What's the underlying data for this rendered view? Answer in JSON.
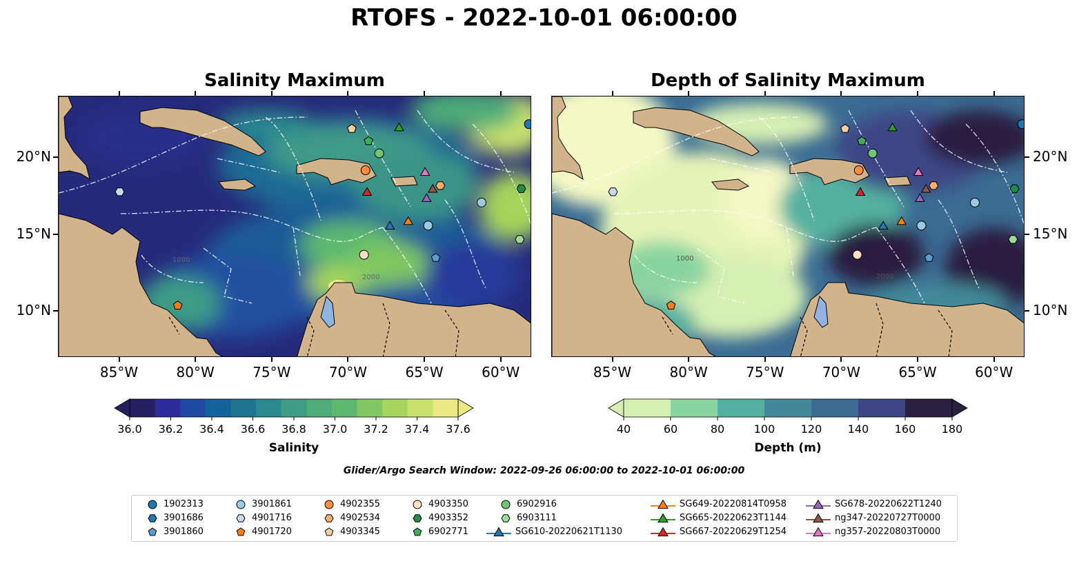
{
  "title": "RTOFS - 2022-10-01 06:00:00",
  "panels": [
    {
      "title": "Salinity Maximum"
    },
    {
      "title": "Depth of Salinity Maximum"
    }
  ],
  "axes": {
    "lon_labels": [
      "85°W",
      "80°W",
      "75°W",
      "70°W",
      "65°W",
      "60°W"
    ],
    "lat_labels": [
      "20°N",
      "15°N",
      "10°N"
    ],
    "lon_range": [
      -89,
      -58
    ],
    "lat_range": [
      7,
      24
    ]
  },
  "contour_labels": [
    "1000",
    "2000"
  ],
  "colorbars": [
    {
      "label": "Salinity",
      "ticks": [
        "36.0",
        "36.2",
        "36.4",
        "36.6",
        "36.8",
        "37.0",
        "37.2",
        "37.4",
        "37.6"
      ],
      "range": [
        36.0,
        37.6
      ],
      "colors": [
        "#262060",
        "#2c2a9c",
        "#1f4aa3",
        "#14629b",
        "#1d7592",
        "#2a8a8f",
        "#3e9b86",
        "#4eac78",
        "#5db96f",
        "#80c861",
        "#a5d55c",
        "#c8e26c",
        "#ebe983"
      ]
    },
    {
      "label": "Depth (m)",
      "ticks": [
        "40",
        "60",
        "80",
        "100",
        "120",
        "140",
        "160",
        "180"
      ],
      "range": [
        40,
        180
      ],
      "colors": [
        "#d6efb3",
        "#8ad4a0",
        "#54b0a0",
        "#43899a",
        "#3b6c93",
        "#3d4785",
        "#2a1f3f"
      ]
    }
  ],
  "search_window": "Glider/Argo Search Window: 2022-09-26 06:00:00 to 2022-10-01 06:00:00",
  "legend": [
    {
      "label": "1902313",
      "marker": "circle",
      "color": "#1f77b4",
      "lon": -58.2,
      "lat": 22.2
    },
    {
      "label": "3901686",
      "marker": "hexagon",
      "color": "#1f77b4",
      "lon": null,
      "lat": null
    },
    {
      "label": "3901860",
      "marker": "pentagon",
      "color": "#5a9bd5",
      "lon": -64.3,
      "lat": 13.5
    },
    {
      "label": "3901861",
      "marker": "circle",
      "color": "#9ecae1",
      "lon": -64.8,
      "lat": 15.6
    },
    {
      "label": "4901716",
      "marker": "hexagon",
      "color": "#c6dbef",
      "lon": -85.0,
      "lat": 17.8
    },
    {
      "label": "4901720",
      "marker": "pentagon",
      "color": "#f57f17",
      "lon": -81.2,
      "lat": 10.4
    },
    {
      "label": "4902355",
      "marker": "circle",
      "color": "#fd8d3c",
      "lon": -68.9,
      "lat": 19.2
    },
    {
      "label": "4902534",
      "marker": "hexagon",
      "color": "#fdae6b",
      "lon": -64.0,
      "lat": 18.2
    },
    {
      "label": "4903345",
      "marker": "pentagon",
      "color": "#fdd0a2",
      "lon": -69.8,
      "lat": 21.9
    },
    {
      "label": "4903350",
      "marker": "circle",
      "color": "#fde0c5",
      "lon": -69.0,
      "lat": 13.7
    },
    {
      "label": "4903352",
      "marker": "hexagon",
      "color": "#238b45",
      "lon": -58.7,
      "lat": 18.0
    },
    {
      "label": "6902771",
      "marker": "pentagon",
      "color": "#41ab5d",
      "lon": -68.7,
      "lat": 21.1
    },
    {
      "label": "6902916",
      "marker": "circle",
      "color": "#74c476",
      "lon": -68.0,
      "lat": 20.3
    },
    {
      "label": "6903111",
      "marker": "hexagon",
      "color": "#a1d99b",
      "lon": -58.8,
      "lat": 14.7
    },
    {
      "label": "SG610-20220621T1130",
      "marker": "triangle",
      "color": "#1f77b4",
      "line": true,
      "lon": -67.3,
      "lat": 15.6
    },
    {
      "label": "SG649-20220814T0958",
      "marker": "triangle",
      "color": "#ff7f0e",
      "line": true,
      "lon": -66.1,
      "lat": 15.9
    },
    {
      "label": "SG665-20220623T1144",
      "marker": "triangle",
      "color": "#2ca02c",
      "line": true,
      "lon": -66.7,
      "lat": 22.0
    },
    {
      "label": "SG667-20220629T1254",
      "marker": "triangle",
      "color": "#d62728",
      "line": true,
      "lon": -68.8,
      "lat": 17.8
    },
    {
      "label": "SG678-20220622T1240",
      "marker": "triangle",
      "color": "#9467bd",
      "line": true,
      "lon": -64.9,
      "lat": 17.4
    },
    {
      "label": "ng347-20220727T0000",
      "marker": "triangle",
      "color": "#8c564b",
      "line": true,
      "lon": -64.5,
      "lat": 18.0
    },
    {
      "label": "ng357-20220803T0000",
      "marker": "triangle",
      "color": "#e377c2",
      "line": true,
      "lon": -65.0,
      "lat": 19.1
    }
  ],
  "extra_markers": [
    {
      "marker": "circle",
      "color": "#9ecae1",
      "lon": -61.3,
      "lat": 17.1
    }
  ]
}
